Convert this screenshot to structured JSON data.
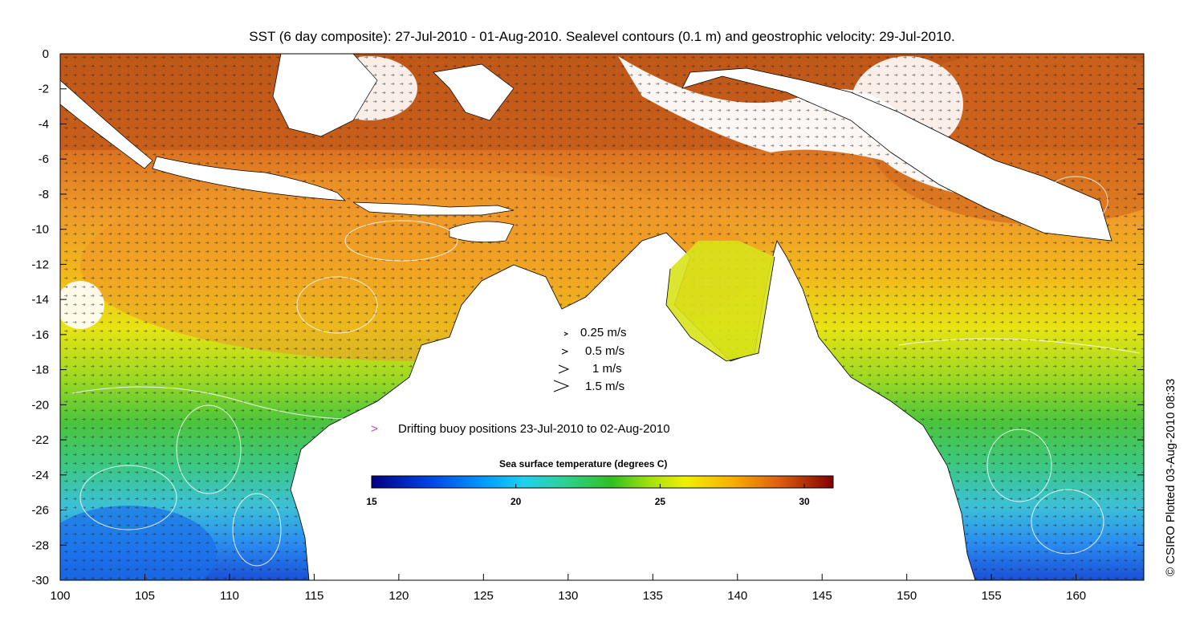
{
  "title": "SST (6 day composite): 27-Jul-2010 - 01-Aug-2010. Sealevel contours (0.1 m) and geostrophic velocity: 29-Jul-2010.",
  "map": {
    "x_ticks": [
      "100",
      "105",
      "110",
      "115",
      "120",
      "125",
      "130",
      "135",
      "140",
      "145",
      "150",
      "155",
      "160"
    ],
    "y_ticks": [
      "0",
      "-2",
      "-4",
      "-6",
      "-8",
      "-10",
      "-12",
      "-14",
      "-16",
      "-18",
      "-20",
      "-22",
      "-24",
      "-26",
      "-28",
      "-30"
    ],
    "lon_range": [
      100,
      164
    ],
    "lat_range": [
      -30,
      0
    ]
  },
  "velocity_legend": {
    "items": [
      "0.25 m/s",
      "0.5 m/s",
      "1 m/s",
      "1.5 m/s"
    ]
  },
  "buoy_legend": {
    "symbol": ">",
    "label": "Drifting buoy positions 23-Jul-2010 to 02-Aug-2010",
    "color": "#c040c0"
  },
  "colorbar": {
    "title": "Sea surface temperature (degrees C)",
    "ticks": [
      "15",
      "20",
      "25",
      "30"
    ],
    "range": [
      15,
      31
    ]
  },
  "credit": "© CSIRO Plotted 03-Aug-2010 08:33"
}
